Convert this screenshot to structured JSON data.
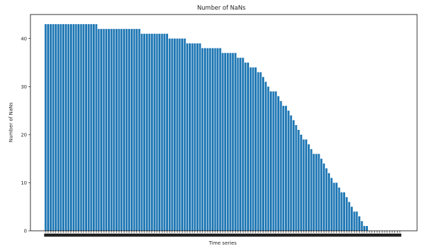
{
  "chart_data": {
    "type": "bar",
    "title": "Number of NaNs",
    "xlabel": "Time series",
    "ylabel": "Number of NaNs",
    "ylim": [
      0,
      45
    ],
    "yticks": [
      0,
      10,
      20,
      30,
      40
    ],
    "bar_color": "#1f77b4",
    "grid": false,
    "x_tick_labels_note_count": 141,
    "values": [
      43,
      43,
      43,
      43,
      43,
      43,
      43,
      43,
      43,
      43,
      43,
      43,
      43,
      43,
      43,
      43,
      43,
      43,
      43,
      43,
      43,
      42,
      42,
      42,
      42,
      42,
      42,
      42,
      42,
      42,
      42,
      42,
      42,
      42,
      42,
      42,
      42,
      42,
      41,
      41,
      41,
      41,
      41,
      41,
      41,
      41,
      41,
      41,
      41,
      40,
      40,
      40,
      40,
      40,
      40,
      40,
      39,
      39,
      39,
      39,
      39,
      39,
      38,
      38,
      38,
      38,
      38,
      38,
      38,
      38,
      37,
      37,
      37,
      37,
      37,
      37,
      36,
      36,
      36,
      35,
      35,
      34,
      34,
      34,
      33,
      33,
      32,
      31,
      30,
      29,
      29,
      29,
      28,
      27,
      26,
      26,
      25,
      24,
      23,
      22,
      21,
      20,
      19,
      19,
      18,
      17,
      16,
      16,
      16,
      15,
      14,
      13,
      12,
      11,
      10,
      10,
      9,
      8,
      8,
      7,
      6,
      5,
      4,
      4,
      3,
      2,
      1,
      1,
      0,
      0,
      0,
      0,
      0,
      0,
      0,
      0,
      0,
      0,
      0,
      0,
      0
    ]
  }
}
